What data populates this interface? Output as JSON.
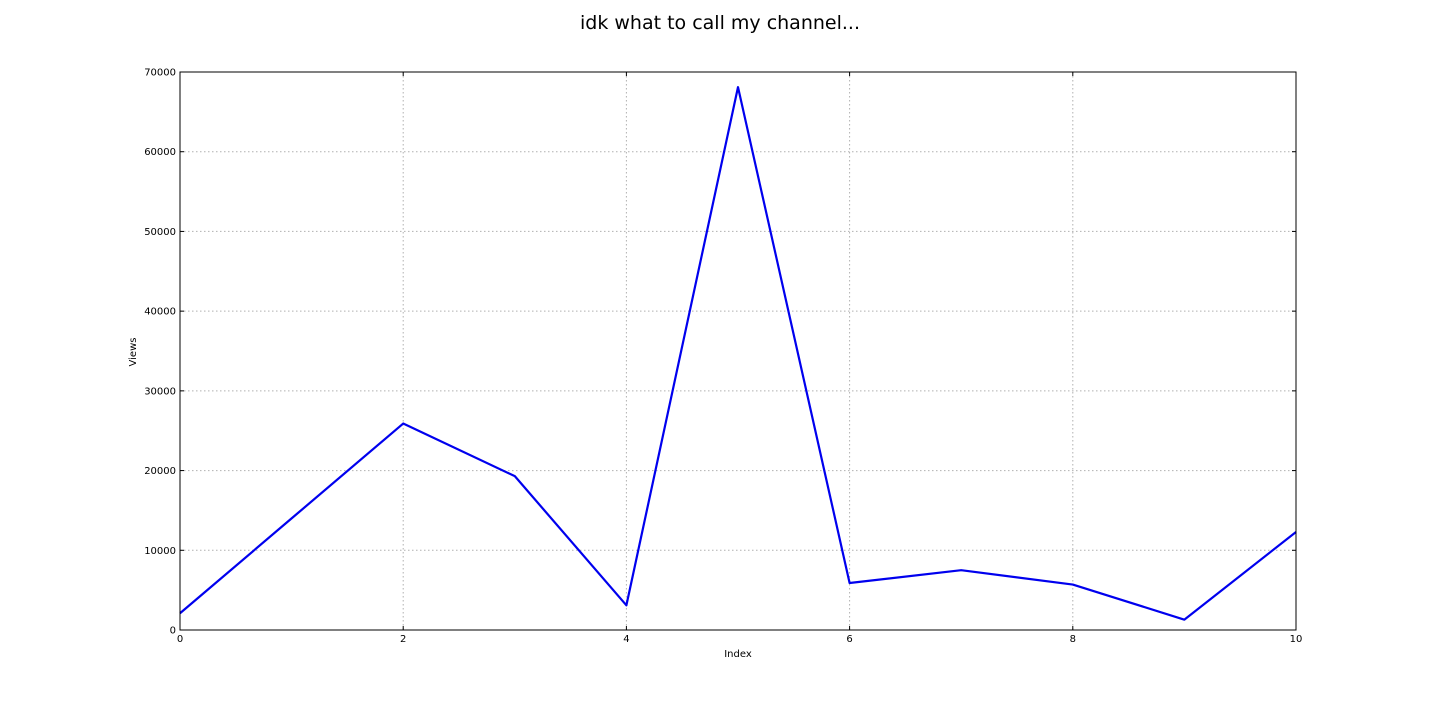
{
  "chart_data": {
    "type": "line",
    "title": "idk what to call my channel...",
    "xlabel": "Index",
    "ylabel": "Views",
    "xlim": [
      0,
      10
    ],
    "ylim": [
      0,
      70000
    ],
    "xticks": [
      0,
      2,
      4,
      6,
      8,
      10
    ],
    "yticks": [
      0,
      10000,
      20000,
      30000,
      40000,
      50000,
      60000,
      70000
    ],
    "grid": true,
    "series": [
      {
        "color": "#0000ee",
        "x": [
          0,
          1,
          2,
          3,
          4,
          5,
          6,
          7,
          8,
          9,
          10
        ],
        "values": [
          2100,
          14000,
          25900,
          19300,
          3100,
          68100,
          5900,
          7500,
          5700,
          1300,
          12300
        ]
      }
    ]
  }
}
